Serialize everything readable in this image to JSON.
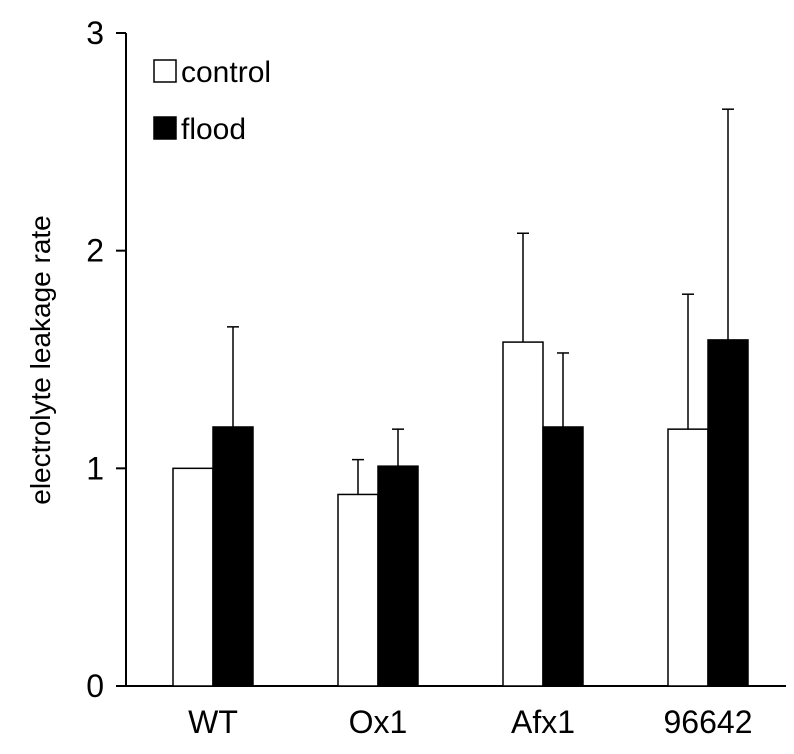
{
  "chart_data": {
    "type": "bar",
    "title": "",
    "xlabel": "",
    "ylabel": "electrolyte leakage rate",
    "ylim": [
      0,
      3
    ],
    "yticks": [
      0,
      1,
      2,
      3
    ],
    "grid": false,
    "legend_position": "top-left",
    "categories": [
      "WT",
      "Ox1",
      "Afx1",
      "96642"
    ],
    "series": [
      {
        "name": "control",
        "fill": "#ffffff",
        "stroke": "#000000",
        "values": [
          1.0,
          0.88,
          1.58,
          1.18
        ],
        "errors": [
          0.0,
          0.16,
          0.5,
          0.62
        ]
      },
      {
        "name": "flood",
        "fill": "#000000",
        "stroke": "#000000",
        "values": [
          1.19,
          1.01,
          1.19,
          1.59
        ],
        "errors": [
          0.46,
          0.17,
          0.34,
          1.06
        ]
      }
    ]
  }
}
